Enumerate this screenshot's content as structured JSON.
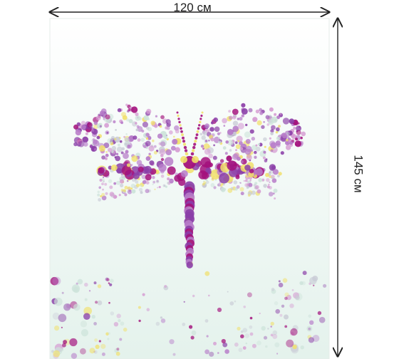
{
  "dimensions": {
    "width_label": "120 см",
    "height_label": "145 см"
  },
  "artwork": {
    "subject_icon": "dragonfly-icon",
    "palette": {
      "magenta": "#a3117c",
      "purple": "#8b3fa8",
      "violet": "#b77cc9",
      "pink": "#d59bd2",
      "yellow": "#f1e06a",
      "mint": "#cde3da",
      "gray": "#c9ccd6"
    },
    "background_top": "#ffffff",
    "background_bottom": "#e4f2ec"
  }
}
